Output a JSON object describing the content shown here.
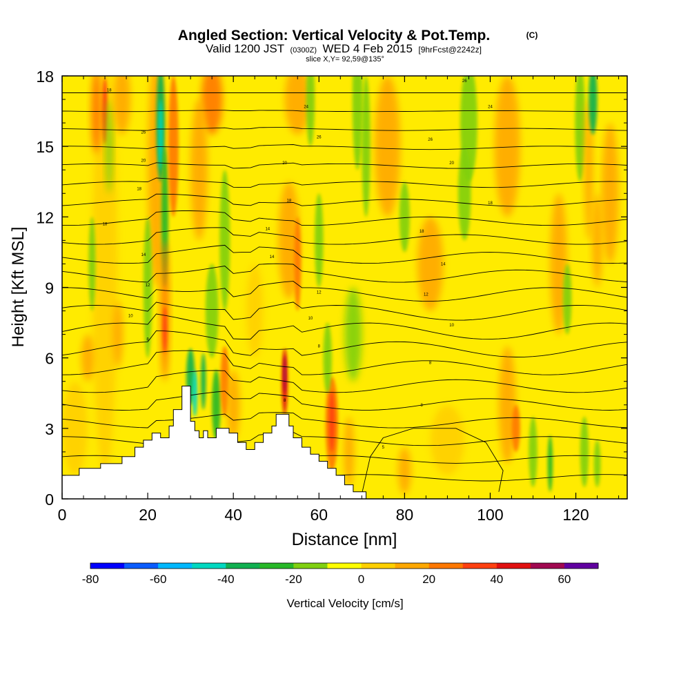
{
  "chart_data": {
    "type": "heatmap",
    "title": "Angled Section: Vertical Velocity & Pot.Temp.",
    "title_suffix": "(C)",
    "subtitle_parts": {
      "valid": "Valid 1200 JST",
      "utc": "(0300Z)",
      "date": "WED 4 Feb 2015",
      "forecast": "[9hrFcst@2242z]"
    },
    "slice_label": "slice X,Y= 92,59@135°",
    "xlabel": "Distance [nm]",
    "ylabel": "Height [Kft MSL]",
    "xlim": [
      0,
      132
    ],
    "ylim": [
      0,
      18
    ],
    "x_ticks": [
      "0",
      "20",
      "40",
      "60",
      "80",
      "100",
      "120"
    ],
    "y_ticks": [
      "0",
      "3",
      "6",
      "9",
      "12",
      "15",
      "18"
    ],
    "colorbar": {
      "label": "Vertical Velocity [cm/s]",
      "range": [
        -80,
        70
      ],
      "ticks": [
        "-80",
        "-60",
        "-40",
        "-20",
        "0",
        "20",
        "40",
        "60"
      ],
      "colors": [
        "#0000ff",
        "#0a5cff",
        "#00b8ff",
        "#00d8c0",
        "#10b050",
        "#28b828",
        "#80d010",
        "#ffff00",
        "#ffd000",
        "#ffa800",
        "#ff7800",
        "#ff4010",
        "#e01010",
        "#a00850",
        "#6000a0"
      ]
    },
    "terrain_profile": {
      "x": [
        0,
        4,
        4,
        9,
        9,
        14,
        14,
        17,
        17,
        19,
        19,
        21,
        21,
        23,
        23,
        25,
        25,
        26,
        26,
        28,
        28,
        30,
        30,
        31,
        31,
        32,
        32,
        33,
        33,
        34,
        34,
        36,
        36,
        39,
        39,
        41,
        41,
        43,
        43,
        45,
        45,
        47,
        47,
        49,
        49,
        50,
        50,
        53,
        53,
        54,
        54,
        56,
        56,
        58,
        58,
        60,
        60,
        62,
        62,
        64,
        64,
        66,
        66,
        68,
        68,
        71,
        71,
        132
      ],
      "y": [
        1.0,
        1.0,
        1.3,
        1.3,
        1.5,
        1.5,
        1.8,
        1.8,
        2.2,
        2.2,
        2.5,
        2.5,
        2.8,
        2.8,
        2.6,
        2.6,
        3.1,
        3.1,
        3.8,
        3.8,
        4.8,
        4.8,
        3.3,
        3.3,
        2.9,
        2.9,
        2.6,
        2.6,
        2.9,
        2.9,
        2.6,
        2.6,
        3.0,
        3.0,
        2.8,
        2.8,
        2.4,
        2.4,
        2.1,
        2.1,
        2.4,
        2.4,
        2.8,
        2.8,
        3.1,
        3.1,
        3.6,
        3.6,
        3.1,
        3.1,
        2.6,
        2.6,
        2.2,
        2.2,
        1.9,
        1.9,
        1.6,
        1.6,
        1.3,
        1.3,
        1.0,
        1.0,
        0.6,
        0.6,
        0.3,
        0.3,
        0.0,
        0.0
      ]
    },
    "isentrope_labels": [
      {
        "text": "18",
        "x": 11,
        "y": 17.4
      },
      {
        "text": "26",
        "x": 19,
        "y": 15.6
      },
      {
        "text": "20",
        "x": 19,
        "y": 14.4
      },
      {
        "text": "18",
        "x": 18,
        "y": 13.2
      },
      {
        "text": "18",
        "x": 10,
        "y": 11.7
      },
      {
        "text": "14",
        "x": 19,
        "y": 10.4
      },
      {
        "text": "12",
        "x": 20,
        "y": 9.1
      },
      {
        "text": "10",
        "x": 16,
        "y": 7.8
      },
      {
        "text": "8",
        "x": 20,
        "y": 6.8
      },
      {
        "text": "24",
        "x": 57,
        "y": 16.7
      },
      {
        "text": "26",
        "x": 60,
        "y": 15.4
      },
      {
        "text": "20",
        "x": 52,
        "y": 14.3
      },
      {
        "text": "18",
        "x": 53,
        "y": 12.7
      },
      {
        "text": "14",
        "x": 48,
        "y": 11.5
      },
      {
        "text": "14",
        "x": 49,
        "y": 10.3
      },
      {
        "text": "12",
        "x": 60,
        "y": 8.8
      },
      {
        "text": "10",
        "x": 58,
        "y": 7.7
      },
      {
        "text": "8",
        "x": 60,
        "y": 6.5
      },
      {
        "text": "8",
        "x": 52,
        "y": 4.2
      },
      {
        "text": "5",
        "x": 75,
        "y": 2.2
      },
      {
        "text": "26",
        "x": 94,
        "y": 17.8
      },
      {
        "text": "24",
        "x": 100,
        "y": 16.7
      },
      {
        "text": "26",
        "x": 86,
        "y": 15.3
      },
      {
        "text": "20",
        "x": 91,
        "y": 14.3
      },
      {
        "text": "18",
        "x": 100,
        "y": 12.6
      },
      {
        "text": "18",
        "x": 84,
        "y": 11.4
      },
      {
        "text": "14",
        "x": 89,
        "y": 10.0
      },
      {
        "text": "12",
        "x": 85,
        "y": 8.7
      },
      {
        "text": "10",
        "x": 91,
        "y": 7.4
      },
      {
        "text": "8",
        "x": 86,
        "y": 5.8
      },
      {
        "text": "8",
        "x": 84,
        "y": 4.0
      }
    ],
    "grid": false,
    "legend_position": "bottom"
  }
}
